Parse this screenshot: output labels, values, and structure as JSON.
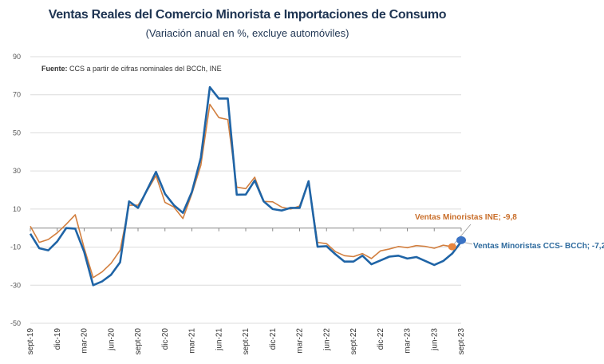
{
  "chart_data": {
    "type": "line",
    "title": "Ventas Reales del Comercio Minorista e Importaciones de Consumo",
    "subtitle": "(Variación anual en %, excluye automóviles)",
    "source_label": "Fuente:",
    "source_text": " CCS a partir de cifras nominales del BCCh, INE",
    "ylim": [
      -50,
      90
    ],
    "yticks": [
      90,
      70,
      50,
      30,
      10,
      -10,
      -30,
      -50
    ],
    "xtick_labels": [
      "sept-19",
      "dic-19",
      "mar-20",
      "jun-20",
      "sept-20",
      "dic-20",
      "mar-21",
      "jun-21",
      "sept-21",
      "dic-21",
      "mar-22",
      "jun-22",
      "sept-22",
      "dic-22",
      "mar-23",
      "jun-23",
      "sept-23"
    ],
    "x_start": "sept-19",
    "grid": true,
    "series": [
      {
        "name": "Ventas Minoristas CCS- BCCh",
        "color": "#1f64a6",
        "end_label": "Ventas Minoristas CCS- BCCh; -7,2",
        "label_color": "#2f6b9e",
        "values": [
          -3,
          -10.6,
          -11.7,
          -7,
          0,
          -0.3,
          -12.5,
          -30,
          -28,
          -24.5,
          -18,
          14,
          10.6,
          20,
          29.5,
          18,
          12,
          8,
          19,
          37,
          74,
          68,
          68,
          17.5,
          17.6,
          25,
          14,
          10,
          9.2,
          10.6,
          10.6,
          24.6,
          -9.8,
          -9.5,
          -13.8,
          -17.6,
          -17.6,
          -14.5,
          -19,
          -17,
          -15,
          -14.5,
          -16,
          -15.2,
          -17.3,
          -19.4,
          -17.3,
          -13.4,
          -7.2
        ]
      },
      {
        "name": "Ventas Minoristas INE",
        "color": "#d27f3f",
        "end_label": "Ventas Minoristas INE; -9,8",
        "label_color": "#c96e2a",
        "values": [
          1,
          -7.5,
          -6,
          -2.5,
          2,
          7,
          -10.5,
          -26,
          -23,
          -18.5,
          -11.7,
          12,
          12,
          19.5,
          27.5,
          13.5,
          11,
          5,
          18,
          33,
          65,
          58,
          57,
          21.5,
          20.7,
          26.7,
          14,
          13.8,
          11,
          10,
          11.6,
          24.6,
          -7.5,
          -8.2,
          -12.4,
          -14.5,
          -15,
          -13.4,
          -16,
          -12,
          -11,
          -9.7,
          -10.3,
          -9.2,
          -9.6,
          -10.6,
          -9,
          -9.8
        ]
      }
    ]
  }
}
